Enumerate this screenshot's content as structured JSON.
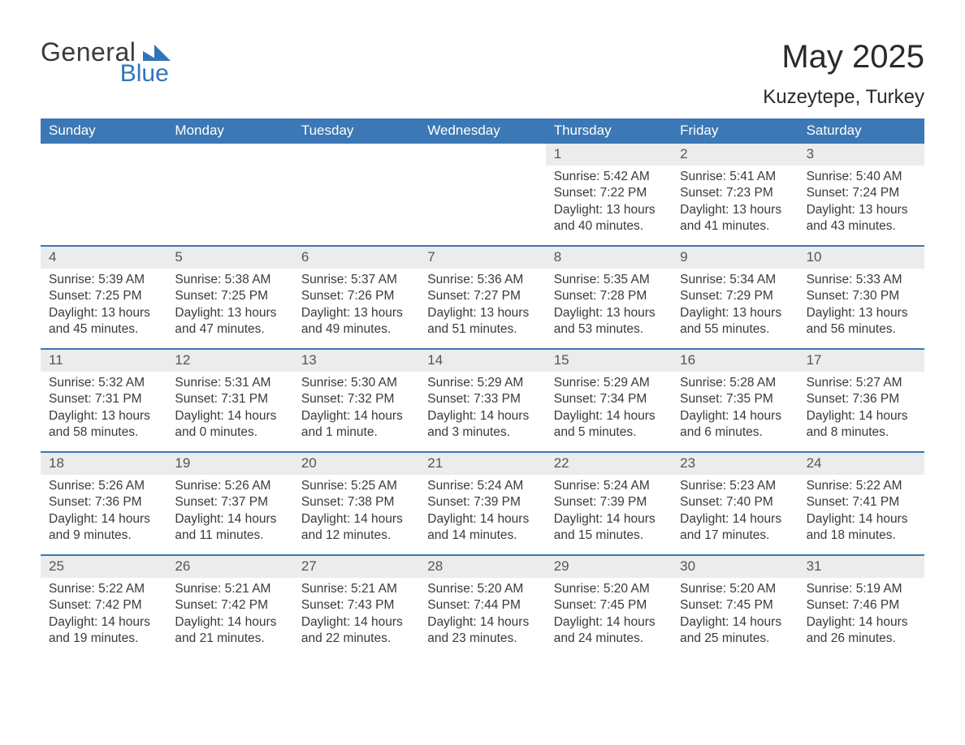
{
  "brand": {
    "word1": "General",
    "word2": "Blue",
    "word1_color": "#3a3a3a",
    "word2_color": "#2f75bb",
    "mark_color": "#2f75bb"
  },
  "title": "May 2025",
  "location": "Kuzeytepe, Turkey",
  "colors": {
    "header_bg": "#3b78b5",
    "header_fg": "#ffffff",
    "daynum_bg": "#ececec",
    "daynum_fg": "#555555",
    "rule": "#3b78b5",
    "text": "#3a3a3a",
    "page_bg": "#ffffff"
  },
  "fonts": {
    "title_pt": 40,
    "location_pt": 24,
    "dow_pt": 17,
    "daynum_pt": 17,
    "body_pt": 15.5
  },
  "days_of_week": [
    "Sunday",
    "Monday",
    "Tuesday",
    "Wednesday",
    "Thursday",
    "Friday",
    "Saturday"
  ],
  "weeks": [
    {
      "nums": [
        "",
        "",
        "",
        "",
        "1",
        "2",
        "3"
      ],
      "cells": [
        {
          "blank": true
        },
        {
          "blank": true
        },
        {
          "blank": true
        },
        {
          "blank": true
        },
        {
          "l1": "Sunrise: 5:42 AM",
          "l2": "Sunset: 7:22 PM",
          "l3": "Daylight: 13 hours",
          "l4": "and 40 minutes."
        },
        {
          "l1": "Sunrise: 5:41 AM",
          "l2": "Sunset: 7:23 PM",
          "l3": "Daylight: 13 hours",
          "l4": "and 41 minutes."
        },
        {
          "l1": "Sunrise: 5:40 AM",
          "l2": "Sunset: 7:24 PM",
          "l3": "Daylight: 13 hours",
          "l4": "and 43 minutes."
        }
      ]
    },
    {
      "nums": [
        "4",
        "5",
        "6",
        "7",
        "8",
        "9",
        "10"
      ],
      "cells": [
        {
          "l1": "Sunrise: 5:39 AM",
          "l2": "Sunset: 7:25 PM",
          "l3": "Daylight: 13 hours",
          "l4": "and 45 minutes."
        },
        {
          "l1": "Sunrise: 5:38 AM",
          "l2": "Sunset: 7:25 PM",
          "l3": "Daylight: 13 hours",
          "l4": "and 47 minutes."
        },
        {
          "l1": "Sunrise: 5:37 AM",
          "l2": "Sunset: 7:26 PM",
          "l3": "Daylight: 13 hours",
          "l4": "and 49 minutes."
        },
        {
          "l1": "Sunrise: 5:36 AM",
          "l2": "Sunset: 7:27 PM",
          "l3": "Daylight: 13 hours",
          "l4": "and 51 minutes."
        },
        {
          "l1": "Sunrise: 5:35 AM",
          "l2": "Sunset: 7:28 PM",
          "l3": "Daylight: 13 hours",
          "l4": "and 53 minutes."
        },
        {
          "l1": "Sunrise: 5:34 AM",
          "l2": "Sunset: 7:29 PM",
          "l3": "Daylight: 13 hours",
          "l4": "and 55 minutes."
        },
        {
          "l1": "Sunrise: 5:33 AM",
          "l2": "Sunset: 7:30 PM",
          "l3": "Daylight: 13 hours",
          "l4": "and 56 minutes."
        }
      ]
    },
    {
      "nums": [
        "11",
        "12",
        "13",
        "14",
        "15",
        "16",
        "17"
      ],
      "cells": [
        {
          "l1": "Sunrise: 5:32 AM",
          "l2": "Sunset: 7:31 PM",
          "l3": "Daylight: 13 hours",
          "l4": "and 58 minutes."
        },
        {
          "l1": "Sunrise: 5:31 AM",
          "l2": "Sunset: 7:31 PM",
          "l3": "Daylight: 14 hours",
          "l4": "and 0 minutes."
        },
        {
          "l1": "Sunrise: 5:30 AM",
          "l2": "Sunset: 7:32 PM",
          "l3": "Daylight: 14 hours",
          "l4": "and 1 minute."
        },
        {
          "l1": "Sunrise: 5:29 AM",
          "l2": "Sunset: 7:33 PM",
          "l3": "Daylight: 14 hours",
          "l4": "and 3 minutes."
        },
        {
          "l1": "Sunrise: 5:29 AM",
          "l2": "Sunset: 7:34 PM",
          "l3": "Daylight: 14 hours",
          "l4": "and 5 minutes."
        },
        {
          "l1": "Sunrise: 5:28 AM",
          "l2": "Sunset: 7:35 PM",
          "l3": "Daylight: 14 hours",
          "l4": "and 6 minutes."
        },
        {
          "l1": "Sunrise: 5:27 AM",
          "l2": "Sunset: 7:36 PM",
          "l3": "Daylight: 14 hours",
          "l4": "and 8 minutes."
        }
      ]
    },
    {
      "nums": [
        "18",
        "19",
        "20",
        "21",
        "22",
        "23",
        "24"
      ],
      "cells": [
        {
          "l1": "Sunrise: 5:26 AM",
          "l2": "Sunset: 7:36 PM",
          "l3": "Daylight: 14 hours",
          "l4": "and 9 minutes."
        },
        {
          "l1": "Sunrise: 5:26 AM",
          "l2": "Sunset: 7:37 PM",
          "l3": "Daylight: 14 hours",
          "l4": "and 11 minutes."
        },
        {
          "l1": "Sunrise: 5:25 AM",
          "l2": "Sunset: 7:38 PM",
          "l3": "Daylight: 14 hours",
          "l4": "and 12 minutes."
        },
        {
          "l1": "Sunrise: 5:24 AM",
          "l2": "Sunset: 7:39 PM",
          "l3": "Daylight: 14 hours",
          "l4": "and 14 minutes."
        },
        {
          "l1": "Sunrise: 5:24 AM",
          "l2": "Sunset: 7:39 PM",
          "l3": "Daylight: 14 hours",
          "l4": "and 15 minutes."
        },
        {
          "l1": "Sunrise: 5:23 AM",
          "l2": "Sunset: 7:40 PM",
          "l3": "Daylight: 14 hours",
          "l4": "and 17 minutes."
        },
        {
          "l1": "Sunrise: 5:22 AM",
          "l2": "Sunset: 7:41 PM",
          "l3": "Daylight: 14 hours",
          "l4": "and 18 minutes."
        }
      ]
    },
    {
      "nums": [
        "25",
        "26",
        "27",
        "28",
        "29",
        "30",
        "31"
      ],
      "cells": [
        {
          "l1": "Sunrise: 5:22 AM",
          "l2": "Sunset: 7:42 PM",
          "l3": "Daylight: 14 hours",
          "l4": "and 19 minutes."
        },
        {
          "l1": "Sunrise: 5:21 AM",
          "l2": "Sunset: 7:42 PM",
          "l3": "Daylight: 14 hours",
          "l4": "and 21 minutes."
        },
        {
          "l1": "Sunrise: 5:21 AM",
          "l2": "Sunset: 7:43 PM",
          "l3": "Daylight: 14 hours",
          "l4": "and 22 minutes."
        },
        {
          "l1": "Sunrise: 5:20 AM",
          "l2": "Sunset: 7:44 PM",
          "l3": "Daylight: 14 hours",
          "l4": "and 23 minutes."
        },
        {
          "l1": "Sunrise: 5:20 AM",
          "l2": "Sunset: 7:45 PM",
          "l3": "Daylight: 14 hours",
          "l4": "and 24 minutes."
        },
        {
          "l1": "Sunrise: 5:20 AM",
          "l2": "Sunset: 7:45 PM",
          "l3": "Daylight: 14 hours",
          "l4": "and 25 minutes."
        },
        {
          "l1": "Sunrise: 5:19 AM",
          "l2": "Sunset: 7:46 PM",
          "l3": "Daylight: 14 hours",
          "l4": "and 26 minutes."
        }
      ]
    }
  ]
}
